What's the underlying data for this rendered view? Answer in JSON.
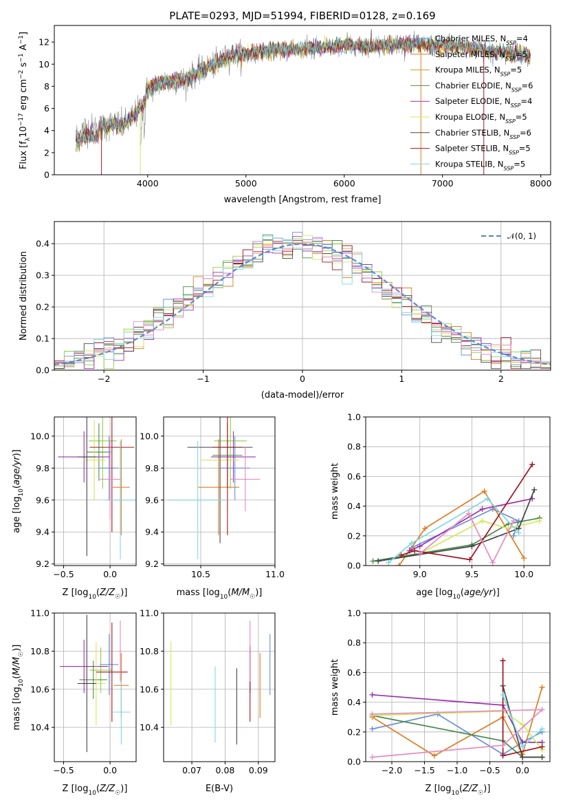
{
  "colors": [
    "#6a8fd8",
    "#e07b22",
    "#8fce3e",
    "#4a8a4a",
    "#9b2fb0",
    "#d4e85a",
    "#444444",
    "#a0141e",
    "#7ed8e2",
    "#e48bc0",
    "#808080"
  ],
  "chart_data": [
    {
      "id": "spectrum",
      "type": "line",
      "title": "PLATE=0293, MJD=51994, FIBERID=0128, z=0.169",
      "xlabel": "wavelength [Angstrom, rest frame]",
      "ylabel": "Flux [f_λ10^-17 erg cm^-2 s^-1 A^-1]",
      "xlim": [
        3050,
        8100
      ],
      "ylim": [
        0,
        13.5
      ],
      "xticks": [
        "4000",
        "5000",
        "6000",
        "7000",
        "8000"
      ],
      "yticks": [
        "0",
        "2",
        "4",
        "6",
        "8",
        "10",
        "12"
      ],
      "legend_position": "top-right",
      "series": [
        {
          "name": "Chabrier MILES, N_SSP=4",
          "color": "#6a8fd8"
        },
        {
          "name": "Salpeter MILES, N_SSP=5",
          "color": "#e07b22"
        },
        {
          "name": "Kroupa MILES, N_SSP=5",
          "color": "#c8a020"
        },
        {
          "name": "Chabrier ELODIE, N_SSP=6",
          "color": "#4a8a4a"
        },
        {
          "name": "Salpeter ELODIE, N_SSP=4",
          "color": "#9b2fb0"
        },
        {
          "name": "Kroupa ELODIE, N_SSP=5",
          "color": "#d4e85a"
        },
        {
          "name": "Chabrier STELIB, N_SSP=6",
          "color": "#444444"
        },
        {
          "name": "Salpeter STELIB, N_SSP=5",
          "color": "#a0141e"
        },
        {
          "name": "Kroupa STELIB, N_SSP=5",
          "color": "#7ed8e2"
        }
      ],
      "continuum": [
        [
          3270,
          3.4
        ],
        [
          3350,
          4.2
        ],
        [
          3450,
          4.1
        ],
        [
          3550,
          4.3
        ],
        [
          3650,
          4.6
        ],
        [
          3750,
          4.4
        ],
        [
          3850,
          5.2
        ],
        [
          3950,
          6.2
        ],
        [
          4000,
          7.7
        ],
        [
          4100,
          8.2
        ],
        [
          4200,
          8.4
        ],
        [
          4300,
          8.5
        ],
        [
          4400,
          8.7
        ],
        [
          4500,
          9.2
        ],
        [
          4600,
          9.7
        ],
        [
          4700,
          10.0
        ],
        [
          4800,
          10.6
        ],
        [
          4900,
          10.9
        ],
        [
          5000,
          10.9
        ],
        [
          5200,
          11.2
        ],
        [
          5400,
          11.3
        ],
        [
          5600,
          11.4
        ],
        [
          5800,
          11.5
        ],
        [
          6000,
          11.7
        ],
        [
          6200,
          11.6
        ],
        [
          6400,
          11.7
        ],
        [
          6600,
          11.8
        ],
        [
          6800,
          11.8
        ],
        [
          7000,
          11.7
        ],
        [
          7200,
          11.6
        ],
        [
          7400,
          11.3
        ],
        [
          7600,
          11.1
        ],
        [
          7800,
          10.9
        ],
        [
          7900,
          10.7
        ]
      ]
    },
    {
      "id": "residuals",
      "type": "line",
      "xlabel": "(data-model)/error",
      "ylabel": "Normed distribution",
      "xlim": [
        -2.5,
        2.5
      ],
      "ylim": [
        0,
        0.47
      ],
      "xticks": [
        -2,
        -1,
        0,
        1,
        2
      ],
      "yticks": [
        0.0,
        0.1,
        0.2,
        0.3,
        0.4
      ],
      "legend": "𝒩(0, 1)",
      "legend_position": "top-right",
      "grid": true
    },
    {
      "id": "age_vs_Z",
      "type": "scatter",
      "xlabel": "Z [log10(Z/Z☉)]",
      "ylabel": "age [log10(age/yr)]",
      "xlim": [
        -0.6,
        0.28
      ],
      "ylim": [
        9.19,
        10.12
      ],
      "xticks": [
        -0.5,
        0.0
      ],
      "yticks": [
        9.2,
        9.4,
        9.6,
        9.8,
        10.0
      ],
      "grid": true,
      "points": [
        {
          "x": -0.01,
          "y": 9.8,
          "xerr": 0.1,
          "yerr": 0.2
        },
        {
          "x": 0.12,
          "y": 9.68,
          "xerr": 0.09,
          "yerr": 0.3
        },
        {
          "x": -0.08,
          "y": 9.97,
          "xerr": 0.15,
          "yerr": 0.3
        },
        {
          "x": -0.12,
          "y": 9.9,
          "xerr": 0.13,
          "yerr": 0.18
        },
        {
          "x": -0.28,
          "y": 9.87,
          "xerr": 0.28,
          "yerr": 0.16
        },
        {
          "x": -0.17,
          "y": 9.85,
          "xerr": 0.12,
          "yerr": 0.25
        },
        {
          "x": -0.25,
          "y": 9.87,
          "xerr": 0.1,
          "yerr": 0.62
        },
        {
          "x": 0.02,
          "y": 9.93,
          "xerr": 0.24,
          "yerr": 0.53
        },
        {
          "x": 0.11,
          "y": 9.6,
          "xerr": 0.17,
          "yerr": 0.37
        },
        {
          "x": 0.0,
          "y": 9.73,
          "xerr": 0.11,
          "yerr": 0.25
        }
      ]
    },
    {
      "id": "age_vs_mass",
      "type": "scatter",
      "xlabel": "mass [log10(M/M☉)]",
      "xlim": [
        10.25,
        11.0
      ],
      "ylim": [
        9.19,
        10.12
      ],
      "xticks": [
        10.5,
        11.0
      ],
      "yticks": [
        9.2,
        9.4,
        9.6,
        9.8,
        10.0
      ],
      "grid": true,
      "points": [
        {
          "x": 10.73,
          "y": 9.8,
          "xerr": 0.1,
          "yerr": 0.2
        },
        {
          "x": 10.62,
          "y": 9.68,
          "xerr": 0.14,
          "yerr": 0.3
        },
        {
          "x": 10.7,
          "y": 9.97,
          "xerr": 0.11,
          "yerr": 0.3
        },
        {
          "x": 10.68,
          "y": 9.88,
          "xerr": 0.1,
          "yerr": 0.2
        },
        {
          "x": 10.72,
          "y": 9.87,
          "xerr": 0.15,
          "yerr": 0.16
        },
        {
          "x": 10.63,
          "y": 9.85,
          "xerr": 0.13,
          "yerr": 0.25
        },
        {
          "x": 10.63,
          "y": 9.93,
          "xerr": 0.22,
          "yerr": 0.6
        },
        {
          "x": 10.68,
          "y": 9.93,
          "xerr": 0.1,
          "yerr": 0.55
        },
        {
          "x": 10.48,
          "y": 9.6,
          "xerr": 0.2,
          "yerr": 0.37
        },
        {
          "x": 10.8,
          "y": 9.73,
          "xerr": 0.1,
          "yerr": 0.2
        }
      ]
    },
    {
      "id": "weight_vs_age",
      "type": "line",
      "xlabel": "age [log10(age/yr)]",
      "ylabel": "mass weight",
      "xlim": [
        8.48,
        10.25
      ],
      "ylim": [
        0.0,
        1.0
      ],
      "xticks": [
        9.0,
        9.5,
        10.0
      ],
      "yticks": [
        0.0,
        0.2,
        0.4,
        0.6,
        0.8,
        1.0
      ],
      "grid": true,
      "series": [
        {
          "color": "#6a8fd8",
          "points": [
            [
              8.92,
              0.12
            ],
            [
              9.7,
              0.38
            ],
            [
              9.95,
              0.3
            ],
            [
              9.9,
              0.2
            ]
          ]
        },
        {
          "color": "#e07b22",
          "points": [
            [
              8.8,
              0.0
            ],
            [
              9.05,
              0.25
            ],
            [
              9.62,
              0.5
            ],
            [
              10.0,
              0.05
            ]
          ]
        },
        {
          "color": "#4a8a4a",
          "points": [
            [
              8.55,
              0.03
            ],
            [
              9.5,
              0.14
            ],
            [
              9.85,
              0.28
            ],
            [
              10.15,
              0.32
            ]
          ]
        },
        {
          "color": "#9b2fb0",
          "points": [
            [
              8.9,
              0.1
            ],
            [
              9.0,
              0.13
            ],
            [
              9.6,
              0.38
            ],
            [
              10.08,
              0.45
            ]
          ]
        },
        {
          "color": "#d4e85a",
          "points": [
            [
              9.0,
              0.08
            ],
            [
              9.6,
              0.3
            ],
            [
              9.85,
              0.25
            ],
            [
              10.15,
              0.3
            ]
          ]
        },
        {
          "color": "#444444",
          "points": [
            [
              8.6,
              0.03
            ],
            [
              9.5,
              0.13
            ],
            [
              9.95,
              0.25
            ],
            [
              10.1,
              0.51
            ]
          ]
        },
        {
          "color": "#a0141e",
          "points": [
            [
              8.82,
              0.07
            ],
            [
              8.95,
              0.1
            ],
            [
              9.48,
              0.04
            ],
            [
              10.08,
              0.68
            ]
          ]
        },
        {
          "color": "#7ed8e2",
          "points": [
            [
              8.7,
              0.02
            ],
            [
              8.92,
              0.15
            ],
            [
              9.65,
              0.45
            ],
            [
              9.95,
              0.22
            ]
          ]
        },
        {
          "color": "#e48bc0",
          "points": [
            [
              9.0,
              0.08
            ],
            [
              9.47,
              0.35
            ],
            [
              9.7,
              0.02
            ],
            [
              9.9,
              0.3
            ]
          ]
        }
      ]
    },
    {
      "id": "mass_vs_Z",
      "type": "scatter",
      "xlabel": "Z [log10(Z/Z☉)]",
      "ylabel": "mass [log10(M/M☉)]",
      "xlim": [
        -0.6,
        0.28
      ],
      "ylim": [
        10.22,
        11.0
      ],
      "xticks": [
        -0.5,
        0.0
      ],
      "yticks": [
        10.4,
        10.6,
        10.8,
        11.0
      ],
      "grid": true,
      "points": [
        {
          "x": -0.01,
          "y": 10.73,
          "xerr": 0.1,
          "yerr": 0.16
        },
        {
          "x": 0.12,
          "y": 10.62,
          "xerr": 0.08,
          "yerr": 0.17
        },
        {
          "x": -0.1,
          "y": 10.7,
          "xerr": 0.12,
          "yerr": 0.12
        },
        {
          "x": -0.18,
          "y": 10.65,
          "xerr": 0.15,
          "yerr": 0.1
        },
        {
          "x": -0.28,
          "y": 10.72,
          "xerr": 0.26,
          "yerr": 0.14
        },
        {
          "x": -0.15,
          "y": 10.63,
          "xerr": 0.1,
          "yerr": 0.22
        },
        {
          "x": -0.25,
          "y": 10.63,
          "xerr": 0.1,
          "yerr": 0.36
        },
        {
          "x": 0.02,
          "y": 10.69,
          "xerr": 0.17,
          "yerr": 0.26
        },
        {
          "x": 0.12,
          "y": 10.48,
          "xerr": 0.1,
          "yerr": 0.17
        },
        {
          "x": 0.11,
          "y": 10.8,
          "xerr": 0.01,
          "yerr": 0.16
        }
      ]
    },
    {
      "id": "mass_vs_ebv",
      "type": "scatter",
      "xlabel": "E(B-V)",
      "xlim": [
        0.0615,
        0.095
      ],
      "ylim": [
        10.22,
        11.0
      ],
      "xticks": [
        0.07,
        0.08,
        0.09
      ],
      "yticks": [
        10.4,
        10.6,
        10.8,
        11.0
      ],
      "grid": true,
      "points": [
        {
          "x": 0.0935,
          "y": 10.73,
          "yerr": 0.16,
          "color": "#6a8fd8"
        },
        {
          "x": 0.0905,
          "y": 10.62,
          "yerr": 0.17,
          "color": "#e07b22"
        },
        {
          "x": 0.0875,
          "y": 10.7,
          "yerr": 0.12,
          "color": "#9b2fb0"
        },
        {
          "x": 0.0637,
          "y": 10.63,
          "yerr": 0.22,
          "color": "#d4e85a"
        },
        {
          "x": 0.0835,
          "y": 10.51,
          "yerr": 0.2,
          "color": "#444444"
        },
        {
          "x": 0.0875,
          "y": 10.63,
          "yerr": 0.2,
          "color": "#a0141e"
        },
        {
          "x": 0.077,
          "y": 10.52,
          "yerr": 0.2,
          "color": "#7ed8e2"
        },
        {
          "x": 0.0875,
          "y": 10.8,
          "yerr": 0.16,
          "color": "#e48bc0"
        }
      ]
    },
    {
      "id": "weight_vs_Z",
      "type": "line",
      "xlabel": "Z [log10(Z/Z☉)]",
      "ylabel": "mass weight",
      "xlim": [
        -2.4,
        0.42
      ],
      "ylim": [
        0.0,
        1.0
      ],
      "xticks": [
        -2.0,
        -1.5,
        -1.0,
        -0.5,
        0.0
      ],
      "yticks": [
        0.0,
        0.2,
        0.4,
        0.6,
        0.8,
        1.0
      ],
      "grid": true,
      "series": [
        {
          "color": "#6a8fd8",
          "points": [
            [
              -2.3,
              0.22
            ],
            [
              -1.3,
              0.32
            ],
            [
              -0.3,
              0.05
            ],
            [
              0.0,
              0.13
            ],
            [
              0.3,
              0.2
            ]
          ]
        },
        {
          "color": "#e07b22",
          "points": [
            [
              -2.3,
              0.3
            ],
            [
              -1.35,
              0.04
            ],
            [
              -0.3,
              0.3
            ],
            [
              0.0,
              0.05
            ],
            [
              0.3,
              0.5
            ]
          ]
        },
        {
          "color": "#4a8a4a",
          "points": [
            [
              -2.3,
              0.31
            ],
            [
              -0.3,
              0.14
            ],
            [
              0.0,
              0.03
            ],
            [
              0.3,
              0.03
            ]
          ]
        },
        {
          "color": "#9b2fb0",
          "points": [
            [
              -2.3,
              0.45
            ],
            [
              -0.3,
              0.38
            ],
            [
              0.0,
              0.13
            ],
            [
              0.3,
              0.13
            ]
          ]
        },
        {
          "color": "#d4e85a",
          "points": [
            [
              -2.3,
              0.31
            ],
            [
              -0.3,
              0.34
            ],
            [
              0.0,
              0.25
            ],
            [
              0.3,
              0.08
            ]
          ]
        },
        {
          "color": "#444444",
          "points": [
            [
              -0.3,
              0.51
            ],
            [
              0.0,
              0.03
            ],
            [
              0.3,
              0.03
            ]
          ]
        },
        {
          "color": "#a0141e",
          "points": [
            [
              -0.3,
              0.68
            ],
            [
              -0.3,
              0.04
            ],
            [
              0.3,
              0.1
            ]
          ]
        },
        {
          "color": "#7ed8e2",
          "points": [
            [
              -0.3,
              0.45
            ],
            [
              0.0,
              0.1
            ],
            [
              0.3,
              0.22
            ]
          ]
        },
        {
          "color": "#e48bc0",
          "points": [
            [
              -2.3,
              0.03
            ],
            [
              -0.3,
              0.11
            ],
            [
              0.3,
              0.35
            ],
            [
              -2.3,
              0.32
            ]
          ]
        }
      ]
    }
  ]
}
